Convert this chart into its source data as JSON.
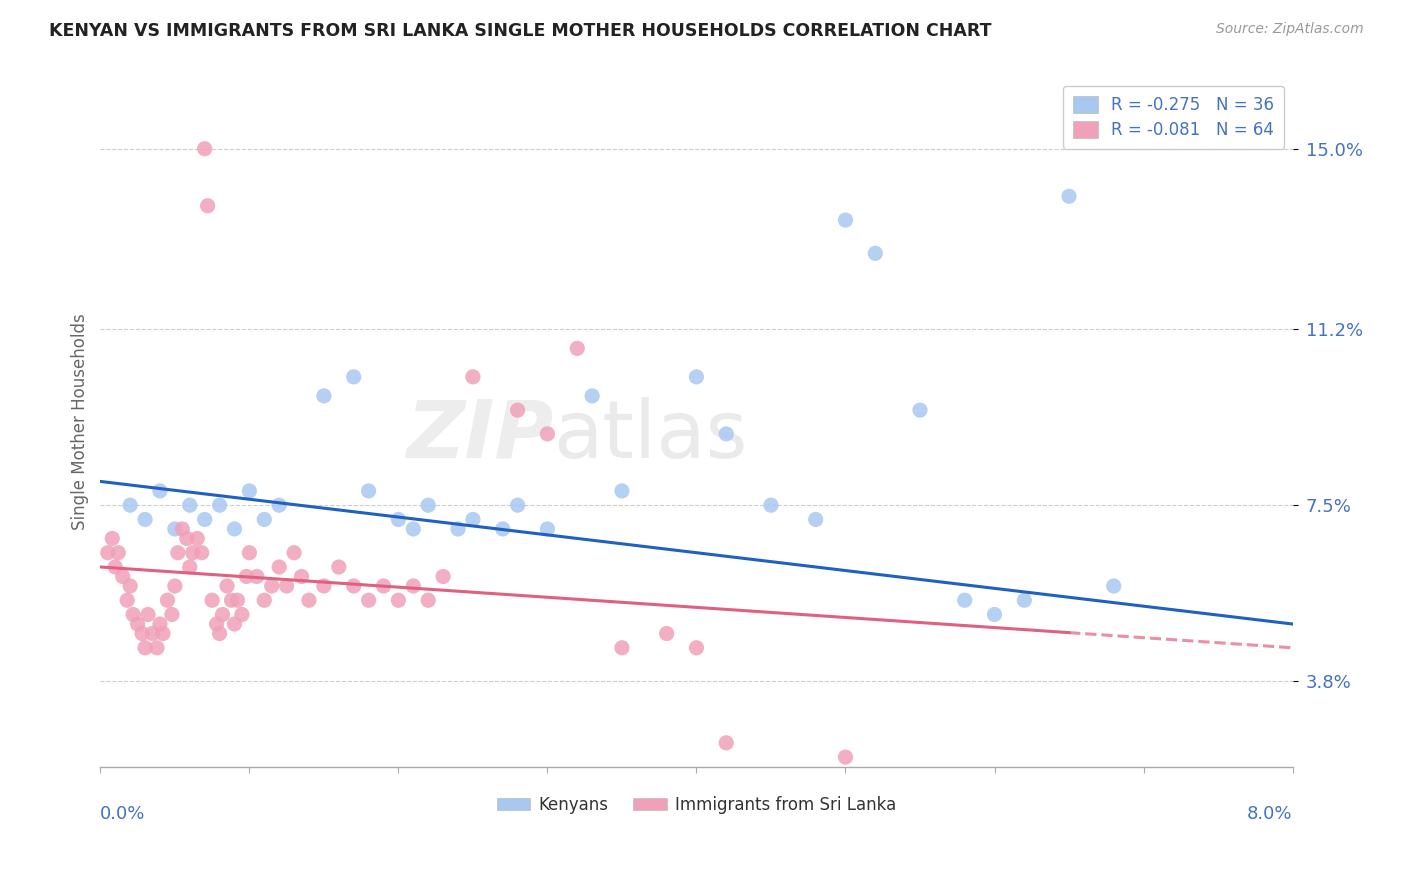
{
  "title": "KENYAN VS IMMIGRANTS FROM SRI LANKA SINGLE MOTHER HOUSEHOLDS CORRELATION CHART",
  "source": "Source: ZipAtlas.com",
  "ylabel": "Single Mother Households",
  "yticks": [
    3.8,
    7.5,
    11.2,
    15.0
  ],
  "xlim": [
    0.0,
    8.0
  ],
  "ylim": [
    2.0,
    16.5
  ],
  "legend_blue_r": "-0.275",
  "legend_blue_n": "36",
  "legend_pink_r": "-0.081",
  "legend_pink_n": "64",
  "blue_color": "#A8C8F0",
  "pink_color": "#F0A0B8",
  "line_blue": "#2060C0",
  "line_pink": "#E06080",
  "watermark_zip": "ZIP",
  "watermark_atlas": "atlas",
  "blue_scatter": [
    [
      0.2,
      7.5
    ],
    [
      0.3,
      7.2
    ],
    [
      0.4,
      7.8
    ],
    [
      0.5,
      7.0
    ],
    [
      0.6,
      7.5
    ],
    [
      0.7,
      7.2
    ],
    [
      0.8,
      7.5
    ],
    [
      0.9,
      7.0
    ],
    [
      1.0,
      7.8
    ],
    [
      1.1,
      7.2
    ],
    [
      1.2,
      7.5
    ],
    [
      1.5,
      9.8
    ],
    [
      1.7,
      10.2
    ],
    [
      1.8,
      7.8
    ],
    [
      2.0,
      7.2
    ],
    [
      2.1,
      7.0
    ],
    [
      2.2,
      7.5
    ],
    [
      2.4,
      7.0
    ],
    [
      2.5,
      7.2
    ],
    [
      2.7,
      7.0
    ],
    [
      2.8,
      7.5
    ],
    [
      3.0,
      7.0
    ],
    [
      3.3,
      9.8
    ],
    [
      3.5,
      7.8
    ],
    [
      4.0,
      10.2
    ],
    [
      4.2,
      9.0
    ],
    [
      4.5,
      7.5
    ],
    [
      4.8,
      7.2
    ],
    [
      5.0,
      13.5
    ],
    [
      5.2,
      12.8
    ],
    [
      5.5,
      9.5
    ],
    [
      5.8,
      5.5
    ],
    [
      6.0,
      5.2
    ],
    [
      6.2,
      5.5
    ],
    [
      6.5,
      14.0
    ],
    [
      6.8,
      5.8
    ]
  ],
  "pink_scatter": [
    [
      0.05,
      6.5
    ],
    [
      0.08,
      6.8
    ],
    [
      0.1,
      6.2
    ],
    [
      0.12,
      6.5
    ],
    [
      0.15,
      6.0
    ],
    [
      0.18,
      5.5
    ],
    [
      0.2,
      5.8
    ],
    [
      0.22,
      5.2
    ],
    [
      0.25,
      5.0
    ],
    [
      0.28,
      4.8
    ],
    [
      0.3,
      4.5
    ],
    [
      0.32,
      5.2
    ],
    [
      0.35,
      4.8
    ],
    [
      0.38,
      4.5
    ],
    [
      0.4,
      5.0
    ],
    [
      0.42,
      4.8
    ],
    [
      0.45,
      5.5
    ],
    [
      0.48,
      5.2
    ],
    [
      0.5,
      5.8
    ],
    [
      0.52,
      6.5
    ],
    [
      0.55,
      7.0
    ],
    [
      0.58,
      6.8
    ],
    [
      0.6,
      6.2
    ],
    [
      0.62,
      6.5
    ],
    [
      0.65,
      6.8
    ],
    [
      0.68,
      6.5
    ],
    [
      0.7,
      15.0
    ],
    [
      0.72,
      13.8
    ],
    [
      0.75,
      5.5
    ],
    [
      0.78,
      5.0
    ],
    [
      0.8,
      4.8
    ],
    [
      0.82,
      5.2
    ],
    [
      0.85,
      5.8
    ],
    [
      0.88,
      5.5
    ],
    [
      0.9,
      5.0
    ],
    [
      0.92,
      5.5
    ],
    [
      0.95,
      5.2
    ],
    [
      0.98,
      6.0
    ],
    [
      1.0,
      6.5
    ],
    [
      1.05,
      6.0
    ],
    [
      1.1,
      5.5
    ],
    [
      1.15,
      5.8
    ],
    [
      1.2,
      6.2
    ],
    [
      1.25,
      5.8
    ],
    [
      1.3,
      6.5
    ],
    [
      1.35,
      6.0
    ],
    [
      1.4,
      5.5
    ],
    [
      1.5,
      5.8
    ],
    [
      1.6,
      6.2
    ],
    [
      1.7,
      5.8
    ],
    [
      1.8,
      5.5
    ],
    [
      1.9,
      5.8
    ],
    [
      2.0,
      5.5
    ],
    [
      2.1,
      5.8
    ],
    [
      2.2,
      5.5
    ],
    [
      2.3,
      6.0
    ],
    [
      2.5,
      10.2
    ],
    [
      2.8,
      9.5
    ],
    [
      3.0,
      9.0
    ],
    [
      3.2,
      10.8
    ],
    [
      3.5,
      4.5
    ],
    [
      3.8,
      4.8
    ],
    [
      4.0,
      4.5
    ],
    [
      4.2,
      2.5
    ],
    [
      5.0,
      2.2
    ]
  ],
  "background_color": "#FFFFFF",
  "grid_color": "#CCCCCC"
}
